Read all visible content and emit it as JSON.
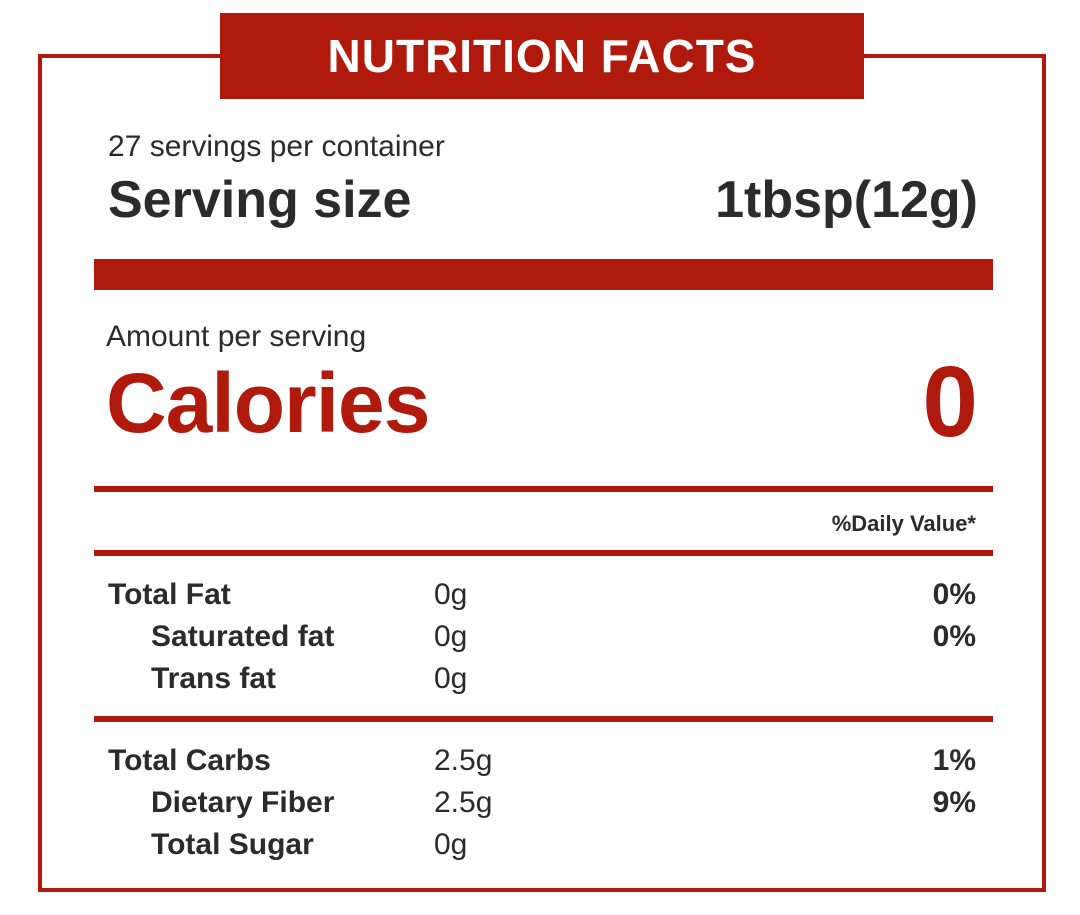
{
  "header": {
    "title": "NUTRITION FACTS"
  },
  "serving": {
    "per_container": "27 servings per container",
    "size_label": "Serving size",
    "size_value": "1tbsp(12g)"
  },
  "calories": {
    "amount_label": "Amount per serving",
    "label": "Calories",
    "value": "0"
  },
  "daily_value_header": "%Daily Value*",
  "nutrients": [
    {
      "label": "Total Fat",
      "amount": "0g",
      "dv": "0%"
    },
    {
      "label": "Saturated fat",
      "amount": "0g",
      "dv": "0%"
    },
    {
      "label": "Trans fat",
      "amount": "0g",
      "dv": ""
    },
    {
      "label": "Total Carbs",
      "amount": "2.5g",
      "dv": "1%"
    },
    {
      "label": "Dietary Fiber",
      "amount": "2.5g",
      "dv": "9%"
    },
    {
      "label": "Total Sugar",
      "amount": "0g",
      "dv": ""
    }
  ],
  "colors": {
    "accent": "#b01a0c",
    "text": "#2b2b2b"
  }
}
